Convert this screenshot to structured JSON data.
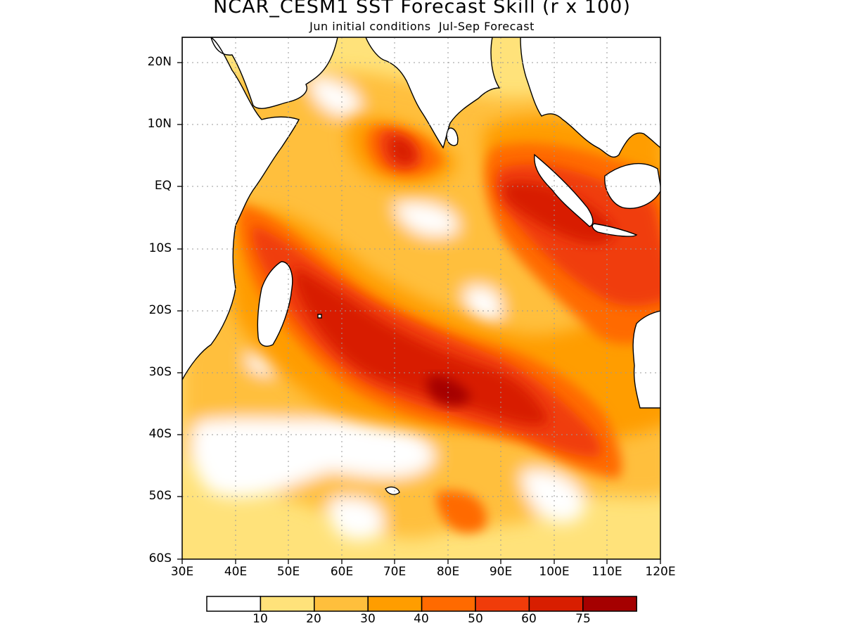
{
  "title": "NCAR_CESM1 SST Forecast Skill (r x 100)",
  "subtitle": "Jun initial conditions  Jul-Sep Forecast",
  "map": {
    "lon_range": [
      30,
      120
    ],
    "lat_range": [
      -60,
      24
    ],
    "lat_ticks": [
      "20N",
      "10N",
      "EQ",
      "10S",
      "20S",
      "30S",
      "40S",
      "50S",
      "60S"
    ],
    "lon_ticks": [
      "30E",
      "40E",
      "50E",
      "60E",
      "70E",
      "80E",
      "90E",
      "100E",
      "110E",
      "120E"
    ],
    "grid": true,
    "region": "Indian Ocean"
  },
  "colorbar": {
    "levels": [
      "10",
      "20",
      "30",
      "40",
      "50",
      "60",
      "75"
    ],
    "colors": [
      "#ffffff",
      "#ffe27a",
      "#ffbf3c",
      "#ff9d00",
      "#ff6a00",
      "#f03c0a",
      "#d81e00",
      "#a50000"
    ]
  },
  "colors": {
    "land": "#ffffff",
    "coast": "#000000"
  }
}
